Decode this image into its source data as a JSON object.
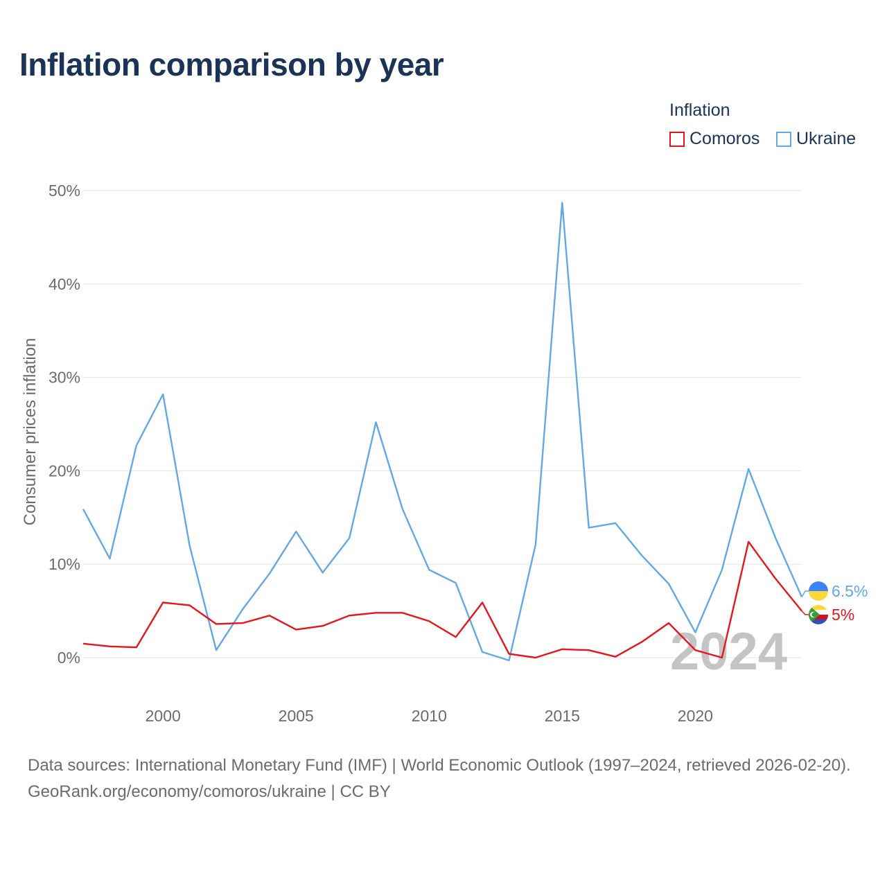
{
  "header": {
    "title": "Inflation comparison by year"
  },
  "legend": {
    "title": "Inflation",
    "items": [
      {
        "label": "Comoros",
        "color": "#e8141c"
      },
      {
        "label": "Ukraine",
        "color": "#62a8e5"
      }
    ]
  },
  "watermark_year": "2024",
  "chart_data": {
    "type": "line",
    "title": "Inflation comparison by year",
    "xlabel": "",
    "ylabel": "Consumer prices inflation",
    "x": [
      1997,
      1998,
      1999,
      2000,
      2001,
      2002,
      2003,
      2004,
      2005,
      2006,
      2007,
      2008,
      2009,
      2010,
      2011,
      2012,
      2013,
      2014,
      2015,
      2016,
      2017,
      2018,
      2019,
      2020,
      2021,
      2022,
      2023,
      2024
    ],
    "xlim": [
      1997,
      2024
    ],
    "ylim": [
      0,
      50
    ],
    "x_ticks": [
      2000,
      2005,
      2010,
      2015,
      2020
    ],
    "y_ticks": [
      0,
      10,
      20,
      30,
      40,
      50
    ],
    "y_tick_labels": [
      "0%",
      "10%",
      "20%",
      "30%",
      "40%",
      "50%"
    ],
    "grid": true,
    "series": [
      {
        "name": "Comoros",
        "color": "#e8141c",
        "values": [
          1.5,
          1.2,
          1.1,
          5.9,
          5.6,
          3.6,
          3.7,
          4.5,
          3.0,
          3.4,
          4.5,
          4.8,
          4.8,
          3.9,
          2.2,
          5.9,
          0.4,
          0.0,
          0.9,
          0.8,
          0.1,
          1.7,
          3.7,
          0.8,
          0.0,
          12.4,
          8.5,
          5.0
        ],
        "end_label": "5%"
      },
      {
        "name": "Ukraine",
        "color": "#62a8e5",
        "values": [
          15.9,
          10.6,
          22.7,
          28.2,
          12.0,
          0.8,
          5.2,
          9.0,
          13.5,
          9.1,
          12.8,
          25.2,
          15.9,
          9.4,
          8.0,
          0.6,
          -0.3,
          12.1,
          48.7,
          13.9,
          14.4,
          10.9,
          7.9,
          2.7,
          9.4,
          20.2,
          12.9,
          6.5
        ],
        "end_label": "6.5%"
      }
    ]
  },
  "footer": {
    "sources": "Data sources: International Monetary Fund (IMF) | World Economic Outlook (1997–2024, retrieved 2026-02-20).",
    "credit": "GeoRank.org/economy/comoros/ukraine | CC BY"
  }
}
